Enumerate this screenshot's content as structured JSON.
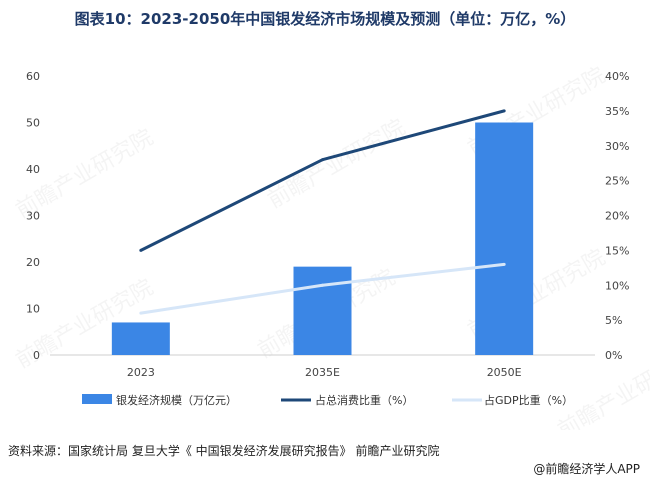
{
  "title": "图表10：2023-2050年中国银发经济市场规模及预测（单位：万亿，%）",
  "source": "资料来源：国家统计局 复旦大学《 中国银发经济发展研究报告》 前瞻产业研究院",
  "brand": "@前瞻经济学人APP",
  "watermark": "前瞻产业研究院",
  "colors": {
    "bar": "#3b86e5",
    "line_consumption": "#1e4878",
    "line_gdp": "#d6e6f8"
  },
  "chart_data": {
    "type": "bar",
    "categories": [
      "2023",
      "2035E",
      "2050E"
    ],
    "series": [
      {
        "name": "银发经济规模（万亿元）",
        "type": "bar",
        "axis": "left",
        "values": [
          7,
          19,
          50
        ]
      },
      {
        "name": "占总消费比重（%）",
        "type": "line",
        "axis": "right",
        "values": [
          15,
          28,
          35
        ]
      },
      {
        "name": "占GDP比重（%）",
        "type": "line",
        "axis": "right",
        "values": [
          6,
          10,
          13
        ]
      }
    ],
    "ylim_left": [
      0,
      60
    ],
    "yticks_left": [
      "0",
      "10",
      "20",
      "30",
      "40",
      "50",
      "60"
    ],
    "ylim_right": [
      0,
      40
    ],
    "yticks_right": [
      "0%",
      "5%",
      "10%",
      "15%",
      "20%",
      "25%",
      "30%",
      "35%",
      "40%"
    ],
    "grid": false,
    "legend_position": "bottom"
  }
}
